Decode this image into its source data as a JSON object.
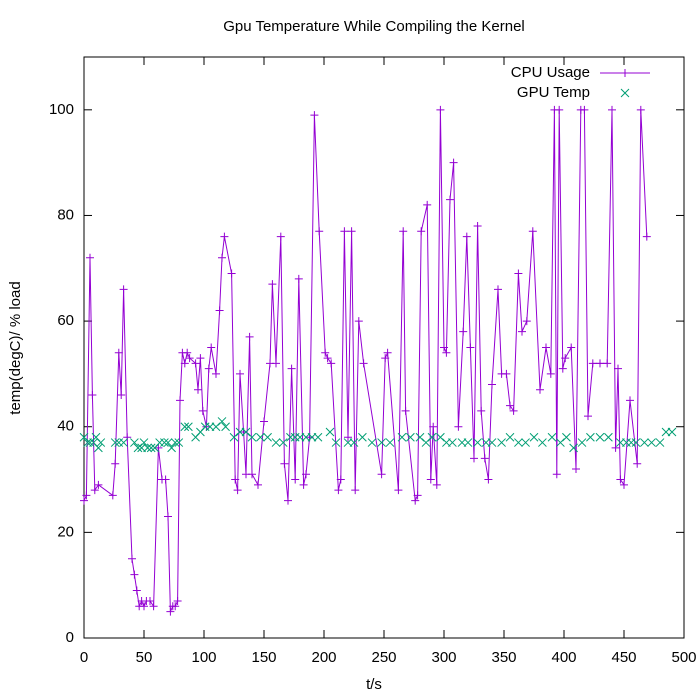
{
  "chart_data": {
    "type": "line",
    "title": "Gpu Temperature While Compiling the Kernel",
    "x_label": "t/s",
    "y_label": "temp(degC)/ % load",
    "xlim": [
      0,
      500
    ],
    "xticks": [
      0,
      50,
      100,
      150,
      200,
      250,
      300,
      350,
      400,
      450,
      500
    ],
    "ylim": [
      0,
      110
    ],
    "yticks": [
      0,
      20,
      40,
      60,
      80,
      100
    ],
    "grid": false,
    "legend": "top-right",
    "series": [
      {
        "name": "CPU Usage",
        "color": "#9400d3",
        "line": true,
        "marker": "plus",
        "x": [
          0,
          2,
          5,
          7,
          9,
          12,
          24,
          26,
          29,
          31,
          33,
          36,
          40,
          42,
          44,
          46,
          48,
          50,
          52,
          55,
          58,
          62,
          65,
          68,
          70,
          72,
          74,
          76,
          78,
          80,
          82,
          84,
          86,
          88,
          93,
          95,
          97,
          99,
          102,
          104,
          106,
          110,
          113,
          115,
          117,
          123,
          126,
          128,
          130,
          133,
          135,
          138,
          140,
          145,
          150,
          155,
          157,
          160,
          164,
          167,
          170,
          173,
          176,
          179,
          183,
          185,
          188,
          192,
          196,
          201,
          203,
          206,
          212,
          214,
          217,
          220,
          223,
          226,
          229,
          233,
          248,
          251,
          253,
          262,
          266,
          268,
          276,
          278,
          281,
          286,
          289,
          291,
          294,
          297,
          300,
          302,
          305,
          308,
          312,
          316,
          319,
          322,
          325,
          328,
          331,
          334,
          337,
          340,
          345,
          348,
          352,
          355,
          358,
          362,
          365,
          369,
          374,
          380,
          385,
          389,
          392,
          394,
          396,
          399,
          401,
          406,
          410,
          414,
          417,
          420,
          424,
          430,
          436,
          440,
          443,
          445,
          447,
          450,
          455,
          461,
          464,
          469
        ],
        "values": [
          26,
          27,
          72,
          46,
          28,
          29,
          27,
          33,
          54,
          46,
          66,
          38,
          15,
          12,
          9,
          6,
          7,
          6,
          7,
          7,
          6,
          36,
          30,
          30,
          23,
          5,
          6,
          6,
          7,
          45,
          54,
          52,
          54,
          53,
          52,
          47,
          53,
          43,
          40,
          51,
          55,
          50,
          62,
          72,
          76,
          69,
          30,
          28,
          50,
          39,
          31,
          57,
          31,
          29,
          41,
          52,
          67,
          52,
          76,
          33,
          26,
          51,
          30,
          68,
          29,
          31,
          38,
          99,
          77,
          54,
          53,
          52,
          28,
          30,
          77,
          38,
          77,
          28,
          60,
          52,
          31,
          53,
          54,
          28,
          77,
          43,
          26,
          27,
          77,
          82,
          30,
          40,
          29,
          100,
          55,
          54,
          83,
          90,
          40,
          58,
          76,
          55,
          34,
          78,
          43,
          34,
          30,
          48,
          66,
          50,
          50,
          44,
          43,
          69,
          58,
          60,
          77,
          47,
          55,
          50,
          100,
          31,
          100,
          51,
          53,
          55,
          32,
          100,
          100,
          42,
          52,
          52,
          52,
          100,
          36,
          51,
          30,
          29,
          45,
          33,
          100,
          76
        ]
      },
      {
        "name": "GPU Temp",
        "color": "#009e73",
        "line": false,
        "marker": "cross",
        "x": [
          0,
          3,
          5,
          8,
          10,
          12,
          14,
          26,
          29,
          33,
          42,
          45,
          48,
          50,
          53,
          56,
          59,
          63,
          67,
          70,
          73,
          76,
          79,
          84,
          87,
          93,
          97,
          101,
          105,
          110,
          115,
          118,
          125,
          130,
          135,
          140,
          147,
          153,
          160,
          166,
          172,
          176,
          180,
          185,
          190,
          195,
          205,
          210,
          220,
          225,
          232,
          240,
          248,
          255,
          265,
          272,
          280,
          285,
          290,
          297,
          302,
          307,
          315,
          320,
          328,
          335,
          340,
          348,
          355,
          362,
          368,
          375,
          382,
          390,
          397,
          402,
          408,
          415,
          422,
          430,
          437,
          447,
          452,
          456,
          460,
          467,
          473,
          480,
          485,
          490
        ],
        "values": [
          38,
          37,
          37,
          37,
          38,
          36,
          37,
          37,
          37,
          37,
          37,
          36,
          36,
          37,
          36,
          36,
          36,
          37,
          37,
          37,
          36,
          37,
          37,
          40,
          40,
          38,
          39,
          40,
          40,
          40,
          41,
          40,
          38,
          39,
          39,
          38,
          38,
          38,
          37,
          37,
          38,
          38,
          38,
          38,
          38,
          38,
          39,
          37,
          37,
          37,
          38,
          37,
          37,
          37,
          38,
          38,
          38,
          37,
          38,
          38,
          37,
          37,
          37,
          37,
          37,
          37,
          37,
          37,
          38,
          37,
          37,
          38,
          37,
          38,
          37,
          38,
          36,
          37,
          38,
          38,
          38,
          37,
          37,
          37,
          37,
          37,
          37,
          37,
          39,
          39
        ]
      }
    ]
  }
}
